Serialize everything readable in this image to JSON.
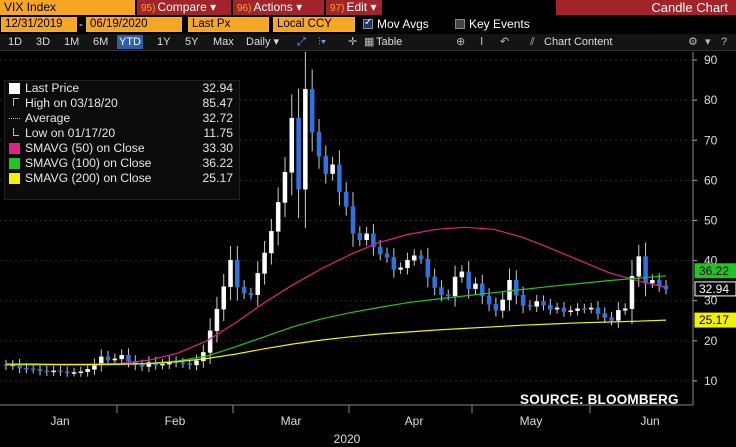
{
  "toolbar": {
    "security": "VIX Index",
    "compare_num": "95)",
    "compare_label": "Compare",
    "actions_num": "96)",
    "actions_label": "Actions",
    "edit_num": "97)",
    "edit_label": "Edit",
    "title": "Candle Chart"
  },
  "controls": {
    "date_start": "12/31/2019",
    "date_sep": "-",
    "date_end": "06/19/2020",
    "price_field": "Last Px",
    "currency": "Local CCY",
    "mov_avgs_label": "Mov Avgs",
    "key_events_label": "Key Events"
  },
  "periods": [
    "1D",
    "3D",
    "1M",
    "6M",
    "YTD",
    "1Y",
    "5Y",
    "Max"
  ],
  "active_period": "YTD",
  "frequency": "Daily",
  "table_label": "Table",
  "chart_content_label": "Chart Content",
  "legend": [
    {
      "label": "Last Price",
      "value": "32.94",
      "icon": "square-white"
    },
    {
      "label": "High on 03/18/20",
      "value": "85.47",
      "icon": "high-marker-icon"
    },
    {
      "label": "Average",
      "value": "32.72",
      "icon": "average-line-icon"
    },
    {
      "label": "Low on 01/17/20",
      "value": "11.75",
      "icon": "low-marker-icon"
    },
    {
      "label": "SMAVG (50)  on Close",
      "value": "33.30",
      "icon": "square-magenta",
      "color": "#e0218a"
    },
    {
      "label": "SMAVG (100)  on Close",
      "value": "36.22",
      "icon": "square-green",
      "color": "#22c322"
    },
    {
      "label": "SMAVG (200)  on Close",
      "value": "25.17",
      "icon": "square-yellow",
      "color": "#f2f200"
    }
  ],
  "source": "SOURCE: BLOOMBERG",
  "chart_data": {
    "type": "line",
    "title": "",
    "xlabel": "2020",
    "ylabel": "",
    "ylim": [
      4,
      92
    ],
    "yticks": [
      10,
      20,
      30,
      40,
      50,
      60,
      70,
      80,
      90
    ],
    "xticks": [
      "Jan",
      "Feb",
      "Mar",
      "Apr",
      "May",
      "Jun"
    ],
    "last_value_labels": [
      {
        "value": "36.22",
        "color": "#22c322"
      },
      {
        "value": "32.94",
        "color": "#ffffff"
      },
      {
        "value": "25.17",
        "color": "#f2f200"
      }
    ],
    "candles_close": [
      13.8,
      14.0,
      13.2,
      13.0,
      12.9,
      12.5,
      12.3,
      12.5,
      12.3,
      12.1,
      12.1,
      12.3,
      12.9,
      14.0,
      16.0,
      15.2,
      15.5,
      16.4,
      14.9,
      14.0,
      13.6,
      14.6,
      14.0,
      14.2,
      14.8,
      14.5,
      14.3,
      14.0,
      15.0,
      17.1,
      22.5,
      27.9,
      33.5,
      40.1,
      33.4,
      31.9,
      31.5,
      36.8,
      41.9,
      47.3,
      54.5,
      62.0,
      75.5,
      57.8,
      82.7,
      72.0,
      66.0,
      61.7,
      63.9,
      57.1,
      53.5,
      46.8,
      45.2,
      46.7,
      43.4,
      41.7,
      40.8,
      37.8,
      38.2,
      40.1,
      41.2,
      40.4,
      35.9,
      33.3,
      31.5,
      31.2,
      35.9,
      37.2,
      33.0,
      34.2,
      31.2,
      29.1,
      27.6,
      30.2,
      35.1,
      31.4,
      28.8,
      28.6,
      29.8,
      28.9,
      27.9,
      28.2,
      27.3,
      27.5,
      28.0,
      27.9,
      28.2,
      26.8,
      25.8,
      25.1,
      27.6,
      28.0,
      36.1,
      41.0,
      34.4,
      35.1,
      33.7,
      32.9
    ],
    "series": [
      {
        "name": "SMAVG (50)  on Close",
        "color": "#e0218a",
        "values": [
          14.0,
          14.0,
          14.1,
          14.2,
          14.4,
          15.2,
          17.0,
          20.0,
          24.5,
          29.5,
          34.0,
          38.0,
          41.5,
          44.5,
          46.5,
          47.8,
          48.3,
          47.8,
          45.8,
          43.0,
          40.0,
          37.0,
          35.0,
          33.3
        ]
      },
      {
        "name": "SMAVG (100)  on Close",
        "color": "#22c322",
        "values": [
          14.0,
          14.0,
          14.0,
          14.0,
          14.1,
          14.4,
          15.0,
          16.2,
          18.5,
          21.0,
          23.5,
          25.5,
          27.0,
          28.3,
          29.5,
          30.4,
          31.2,
          32.0,
          32.8,
          33.6,
          34.3,
          35.0,
          35.6,
          36.2
        ]
      },
      {
        "name": "SMAVG (200)  on Close",
        "color": "#f2f200",
        "values": [
          14.2,
          14.2,
          14.1,
          14.1,
          14.2,
          14.3,
          14.8,
          15.6,
          16.7,
          18.0,
          19.2,
          20.2,
          21.0,
          21.7,
          22.2,
          22.7,
          23.1,
          23.5,
          23.9,
          24.2,
          24.5,
          24.7,
          24.9,
          25.17
        ]
      }
    ]
  }
}
